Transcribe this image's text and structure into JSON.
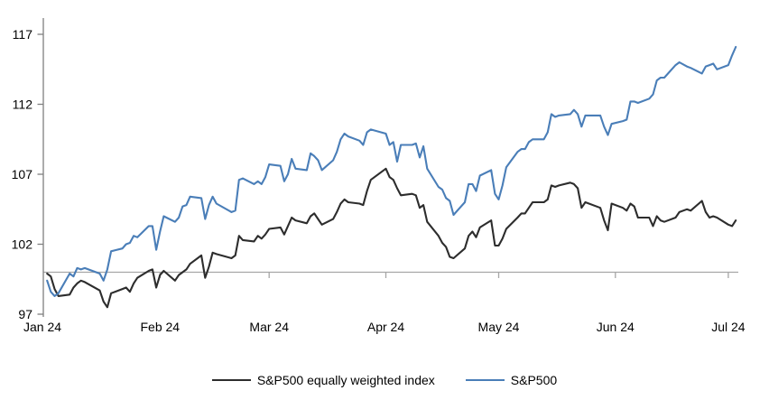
{
  "chart_data": {
    "type": "line",
    "title": "",
    "xlabel": "",
    "ylabel": "",
    "grid": "off",
    "legend_position": "bottom",
    "y_axis": {
      "min": 97,
      "max": 117,
      "ticks": [
        97,
        102,
        107,
        112,
        117
      ],
      "baseline_value": 100
    },
    "x_axis": {
      "tick_labels": [
        "Jan 24",
        "Feb 24",
        "Mar 24",
        "Apr 24",
        "May 24",
        "Jun 24",
        "Jul 24"
      ],
      "tick_dates": [
        "2024-01-01",
        "2024-02-01",
        "2024-03-01",
        "2024-04-01",
        "2024-05-01",
        "2024-06-01",
        "2024-07-01"
      ]
    },
    "dates": [
      "2024-01-02",
      "2024-01-03",
      "2024-01-04",
      "2024-01-05",
      "2024-01-08",
      "2024-01-09",
      "2024-01-10",
      "2024-01-11",
      "2024-01-12",
      "2024-01-16",
      "2024-01-17",
      "2024-01-18",
      "2024-01-19",
      "2024-01-22",
      "2024-01-23",
      "2024-01-24",
      "2024-01-25",
      "2024-01-26",
      "2024-01-29",
      "2024-01-30",
      "2024-01-31",
      "2024-02-01",
      "2024-02-02",
      "2024-02-05",
      "2024-02-06",
      "2024-02-07",
      "2024-02-08",
      "2024-02-09",
      "2024-02-12",
      "2024-02-13",
      "2024-02-14",
      "2024-02-15",
      "2024-02-16",
      "2024-02-20",
      "2024-02-21",
      "2024-02-22",
      "2024-02-23",
      "2024-02-26",
      "2024-02-27",
      "2024-02-28",
      "2024-02-29",
      "2024-03-01",
      "2024-03-04",
      "2024-03-05",
      "2024-03-06",
      "2024-03-07",
      "2024-03-08",
      "2024-03-11",
      "2024-03-12",
      "2024-03-13",
      "2024-03-14",
      "2024-03-15",
      "2024-03-18",
      "2024-03-19",
      "2024-03-20",
      "2024-03-21",
      "2024-03-22",
      "2024-03-25",
      "2024-03-26",
      "2024-03-27",
      "2024-03-28",
      "2024-04-01",
      "2024-04-02",
      "2024-04-03",
      "2024-04-04",
      "2024-04-05",
      "2024-04-08",
      "2024-04-09",
      "2024-04-10",
      "2024-04-11",
      "2024-04-12",
      "2024-04-15",
      "2024-04-16",
      "2024-04-17",
      "2024-04-18",
      "2024-04-19",
      "2024-04-22",
      "2024-04-23",
      "2024-04-24",
      "2024-04-25",
      "2024-04-26",
      "2024-04-29",
      "2024-04-30",
      "2024-05-01",
      "2024-05-02",
      "2024-05-03",
      "2024-05-06",
      "2024-05-07",
      "2024-05-08",
      "2024-05-09",
      "2024-05-10",
      "2024-05-13",
      "2024-05-14",
      "2024-05-15",
      "2024-05-16",
      "2024-05-17",
      "2024-05-20",
      "2024-05-21",
      "2024-05-22",
      "2024-05-23",
      "2024-05-24",
      "2024-05-28",
      "2024-05-29",
      "2024-05-30",
      "2024-05-31",
      "2024-06-03",
      "2024-06-04",
      "2024-06-05",
      "2024-06-06",
      "2024-06-07",
      "2024-06-10",
      "2024-06-11",
      "2024-06-12",
      "2024-06-13",
      "2024-06-14",
      "2024-06-17",
      "2024-06-18",
      "2024-06-20",
      "2024-06-21",
      "2024-06-24",
      "2024-06-25",
      "2024-06-26",
      "2024-06-27",
      "2024-06-28",
      "2024-07-01",
      "2024-07-02",
      "2024-07-03"
    ],
    "series": [
      {
        "name": "S&P500 equally weighted index",
        "color": "#2d2d2d",
        "values": [
          99.9,
          99.7,
          98.8,
          98.3,
          98.4,
          98.9,
          99.2,
          99.4,
          99.3,
          98.7,
          97.9,
          97.5,
          98.5,
          98.8,
          98.9,
          98.6,
          99.2,
          99.6,
          100.1,
          100.2,
          98.9,
          99.8,
          100.1,
          99.4,
          99.8,
          100.0,
          100.2,
          100.6,
          101.2,
          99.6,
          100.4,
          101.4,
          101.3,
          101.0,
          101.2,
          102.6,
          102.3,
          102.2,
          102.6,
          102.4,
          102.7,
          103.1,
          103.2,
          102.7,
          103.3,
          103.9,
          103.7,
          103.5,
          104.0,
          104.2,
          103.8,
          103.4,
          103.8,
          104.3,
          104.9,
          105.2,
          105.0,
          104.9,
          104.8,
          105.8,
          106.6,
          107.4,
          106.8,
          106.6,
          106.0,
          105.5,
          105.6,
          105.5,
          104.6,
          104.8,
          103.6,
          102.6,
          102.1,
          101.8,
          101.1,
          101.0,
          101.7,
          102.6,
          102.9,
          102.5,
          103.2,
          103.7,
          101.9,
          101.9,
          102.4,
          103.1,
          103.9,
          104.2,
          104.2,
          104.6,
          105.0,
          105.0,
          105.2,
          106.2,
          106.1,
          106.2,
          106.4,
          106.3,
          106.0,
          104.6,
          105.0,
          104.6,
          103.7,
          103.0,
          104.9,
          104.6,
          104.4,
          104.9,
          104.7,
          103.9,
          103.9,
          103.3,
          104.0,
          103.7,
          103.6,
          103.9,
          104.3,
          104.5,
          104.4,
          105.1,
          104.3,
          103.9,
          104.0,
          103.9,
          103.4,
          103.3,
          103.7
        ]
      },
      {
        "name": "S&P500",
        "color": "#4a7eb8",
        "values": [
          99.4,
          98.6,
          98.3,
          98.5,
          99.9,
          99.7,
          100.3,
          100.2,
          100.3,
          99.9,
          99.4,
          100.2,
          101.5,
          101.7,
          102.0,
          102.1,
          102.6,
          102.5,
          103.3,
          103.3,
          101.6,
          102.9,
          104.0,
          103.6,
          103.9,
          104.7,
          104.8,
          105.4,
          105.3,
          103.8,
          104.8,
          105.4,
          104.9,
          104.3,
          104.4,
          106.6,
          106.7,
          106.3,
          106.5,
          106.3,
          106.8,
          107.7,
          107.6,
          106.5,
          107.0,
          108.1,
          107.4,
          107.3,
          108.5,
          108.3,
          108.0,
          107.3,
          108.0,
          108.6,
          109.5,
          109.9,
          109.7,
          109.4,
          109.1,
          110.0,
          110.2,
          109.9,
          109.1,
          109.3,
          107.9,
          109.1,
          109.1,
          109.2,
          108.2,
          109.0,
          107.4,
          106.1,
          105.9,
          105.3,
          105.1,
          104.1,
          105.0,
          106.3,
          106.3,
          105.8,
          106.9,
          107.3,
          105.6,
          105.2,
          106.2,
          107.5,
          108.6,
          108.8,
          108.8,
          109.3,
          109.5,
          109.5,
          110.0,
          111.3,
          111.1,
          111.2,
          111.3,
          111.6,
          111.3,
          110.4,
          111.2,
          111.2,
          110.4,
          109.8,
          110.6,
          110.8,
          110.9,
          112.2,
          112.2,
          112.1,
          112.4,
          112.7,
          113.7,
          113.9,
          113.9,
          114.8,
          115.0,
          114.7,
          114.6,
          114.2,
          114.7,
          114.8,
          114.9,
          114.5,
          114.8,
          115.5,
          116.1
        ]
      }
    ]
  },
  "colors": {
    "axis": "#808080",
    "baseline": "#a6a6a6",
    "text": "#000000",
    "background": "#ffffff"
  }
}
